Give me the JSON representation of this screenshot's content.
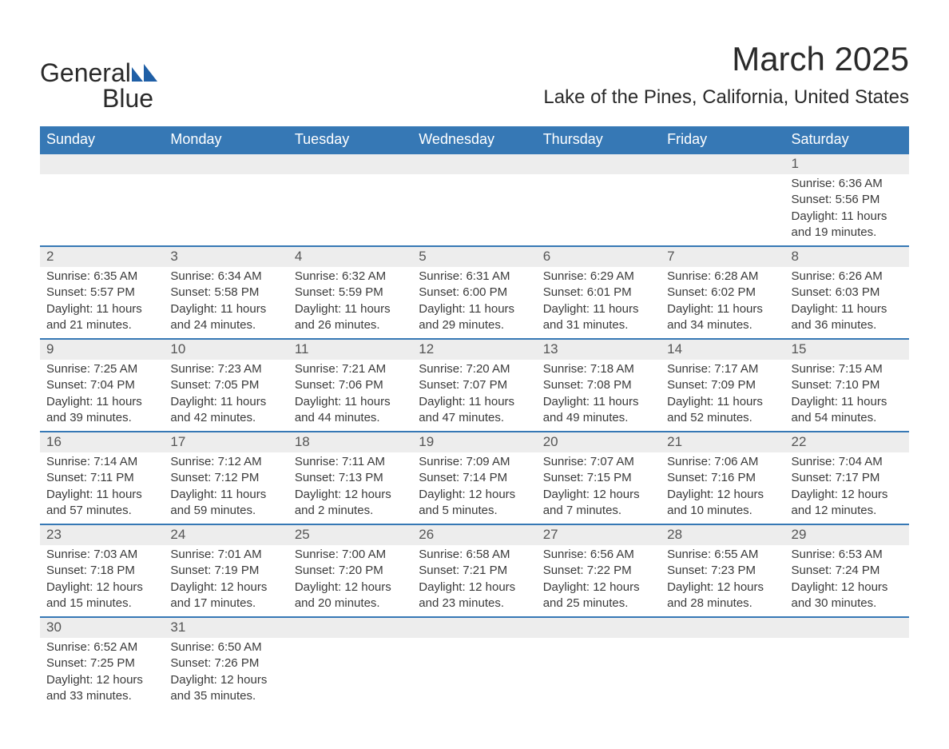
{
  "logo": {
    "line1": "General",
    "line2": "Blue"
  },
  "title": "March 2025",
  "location": "Lake of the Pines, California, United States",
  "colors": {
    "header_bg": "#3678b5",
    "header_text": "#ffffff",
    "daynum_bg": "#ededed",
    "row_divider": "#3678b5",
    "body_text": "#3a3a3a",
    "page_bg": "#ffffff"
  },
  "typography": {
    "title_fontsize": 42,
    "location_fontsize": 24,
    "dayheader_fontsize": 18,
    "daynum_fontsize": 17,
    "body_fontsize": 15
  },
  "day_headers": [
    "Sunday",
    "Monday",
    "Tuesday",
    "Wednesday",
    "Thursday",
    "Friday",
    "Saturday"
  ],
  "weeks": [
    [
      null,
      null,
      null,
      null,
      null,
      null,
      {
        "n": "1",
        "sunrise": "Sunrise: 6:36 AM",
        "sunset": "Sunset: 5:56 PM",
        "daylight": "Daylight: 11 hours and 19 minutes."
      }
    ],
    [
      {
        "n": "2",
        "sunrise": "Sunrise: 6:35 AM",
        "sunset": "Sunset: 5:57 PM",
        "daylight": "Daylight: 11 hours and 21 minutes."
      },
      {
        "n": "3",
        "sunrise": "Sunrise: 6:34 AM",
        "sunset": "Sunset: 5:58 PM",
        "daylight": "Daylight: 11 hours and 24 minutes."
      },
      {
        "n": "4",
        "sunrise": "Sunrise: 6:32 AM",
        "sunset": "Sunset: 5:59 PM",
        "daylight": "Daylight: 11 hours and 26 minutes."
      },
      {
        "n": "5",
        "sunrise": "Sunrise: 6:31 AM",
        "sunset": "Sunset: 6:00 PM",
        "daylight": "Daylight: 11 hours and 29 minutes."
      },
      {
        "n": "6",
        "sunrise": "Sunrise: 6:29 AM",
        "sunset": "Sunset: 6:01 PM",
        "daylight": "Daylight: 11 hours and 31 minutes."
      },
      {
        "n": "7",
        "sunrise": "Sunrise: 6:28 AM",
        "sunset": "Sunset: 6:02 PM",
        "daylight": "Daylight: 11 hours and 34 minutes."
      },
      {
        "n": "8",
        "sunrise": "Sunrise: 6:26 AM",
        "sunset": "Sunset: 6:03 PM",
        "daylight": "Daylight: 11 hours and 36 minutes."
      }
    ],
    [
      {
        "n": "9",
        "sunrise": "Sunrise: 7:25 AM",
        "sunset": "Sunset: 7:04 PM",
        "daylight": "Daylight: 11 hours and 39 minutes."
      },
      {
        "n": "10",
        "sunrise": "Sunrise: 7:23 AM",
        "sunset": "Sunset: 7:05 PM",
        "daylight": "Daylight: 11 hours and 42 minutes."
      },
      {
        "n": "11",
        "sunrise": "Sunrise: 7:21 AM",
        "sunset": "Sunset: 7:06 PM",
        "daylight": "Daylight: 11 hours and 44 minutes."
      },
      {
        "n": "12",
        "sunrise": "Sunrise: 7:20 AM",
        "sunset": "Sunset: 7:07 PM",
        "daylight": "Daylight: 11 hours and 47 minutes."
      },
      {
        "n": "13",
        "sunrise": "Sunrise: 7:18 AM",
        "sunset": "Sunset: 7:08 PM",
        "daylight": "Daylight: 11 hours and 49 minutes."
      },
      {
        "n": "14",
        "sunrise": "Sunrise: 7:17 AM",
        "sunset": "Sunset: 7:09 PM",
        "daylight": "Daylight: 11 hours and 52 minutes."
      },
      {
        "n": "15",
        "sunrise": "Sunrise: 7:15 AM",
        "sunset": "Sunset: 7:10 PM",
        "daylight": "Daylight: 11 hours and 54 minutes."
      }
    ],
    [
      {
        "n": "16",
        "sunrise": "Sunrise: 7:14 AM",
        "sunset": "Sunset: 7:11 PM",
        "daylight": "Daylight: 11 hours and 57 minutes."
      },
      {
        "n": "17",
        "sunrise": "Sunrise: 7:12 AM",
        "sunset": "Sunset: 7:12 PM",
        "daylight": "Daylight: 11 hours and 59 minutes."
      },
      {
        "n": "18",
        "sunrise": "Sunrise: 7:11 AM",
        "sunset": "Sunset: 7:13 PM",
        "daylight": "Daylight: 12 hours and 2 minutes."
      },
      {
        "n": "19",
        "sunrise": "Sunrise: 7:09 AM",
        "sunset": "Sunset: 7:14 PM",
        "daylight": "Daylight: 12 hours and 5 minutes."
      },
      {
        "n": "20",
        "sunrise": "Sunrise: 7:07 AM",
        "sunset": "Sunset: 7:15 PM",
        "daylight": "Daylight: 12 hours and 7 minutes."
      },
      {
        "n": "21",
        "sunrise": "Sunrise: 7:06 AM",
        "sunset": "Sunset: 7:16 PM",
        "daylight": "Daylight: 12 hours and 10 minutes."
      },
      {
        "n": "22",
        "sunrise": "Sunrise: 7:04 AM",
        "sunset": "Sunset: 7:17 PM",
        "daylight": "Daylight: 12 hours and 12 minutes."
      }
    ],
    [
      {
        "n": "23",
        "sunrise": "Sunrise: 7:03 AM",
        "sunset": "Sunset: 7:18 PM",
        "daylight": "Daylight: 12 hours and 15 minutes."
      },
      {
        "n": "24",
        "sunrise": "Sunrise: 7:01 AM",
        "sunset": "Sunset: 7:19 PM",
        "daylight": "Daylight: 12 hours and 17 minutes."
      },
      {
        "n": "25",
        "sunrise": "Sunrise: 7:00 AM",
        "sunset": "Sunset: 7:20 PM",
        "daylight": "Daylight: 12 hours and 20 minutes."
      },
      {
        "n": "26",
        "sunrise": "Sunrise: 6:58 AM",
        "sunset": "Sunset: 7:21 PM",
        "daylight": "Daylight: 12 hours and 23 minutes."
      },
      {
        "n": "27",
        "sunrise": "Sunrise: 6:56 AM",
        "sunset": "Sunset: 7:22 PM",
        "daylight": "Daylight: 12 hours and 25 minutes."
      },
      {
        "n": "28",
        "sunrise": "Sunrise: 6:55 AM",
        "sunset": "Sunset: 7:23 PM",
        "daylight": "Daylight: 12 hours and 28 minutes."
      },
      {
        "n": "29",
        "sunrise": "Sunrise: 6:53 AM",
        "sunset": "Sunset: 7:24 PM",
        "daylight": "Daylight: 12 hours and 30 minutes."
      }
    ],
    [
      {
        "n": "30",
        "sunrise": "Sunrise: 6:52 AM",
        "sunset": "Sunset: 7:25 PM",
        "daylight": "Daylight: 12 hours and 33 minutes."
      },
      {
        "n": "31",
        "sunrise": "Sunrise: 6:50 AM",
        "sunset": "Sunset: 7:26 PM",
        "daylight": "Daylight: 12 hours and 35 minutes."
      },
      null,
      null,
      null,
      null,
      null
    ]
  ]
}
